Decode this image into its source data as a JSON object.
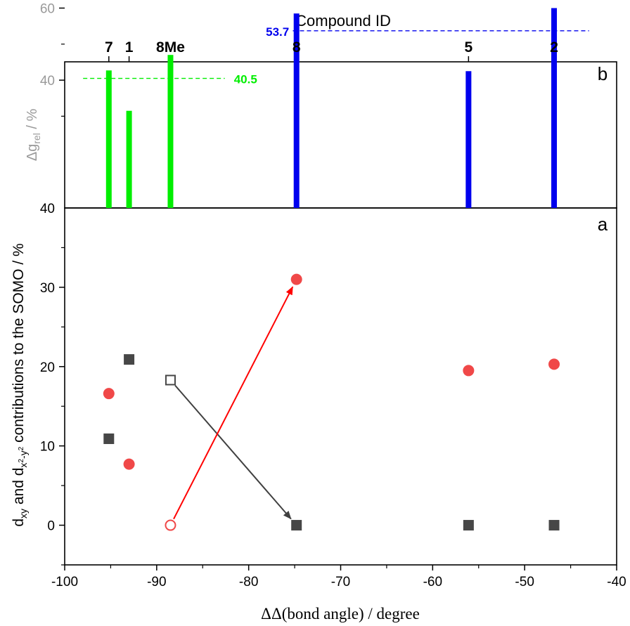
{
  "chart_data": [
    {
      "panel_label": "b",
      "type": "bar",
      "top_axis_title": "Compound ID",
      "ylabel": "Δg",
      "ylabel_subscript": "rel",
      "ylabel_unit": " / %",
      "y_ticks": [
        {
          "value": 60,
          "label": "60"
        },
        {
          "value": 40,
          "label": "40"
        }
      ],
      "bottom_tick_label": "40",
      "series": [
        {
          "name": "",
          "color": "#00ee00",
          "x": [
            -95.2,
            -93.0,
            -88.5
          ],
          "values": [
            42.7,
            31.5,
            47.0
          ],
          "average": 40.5,
          "average_label": "40.5"
        },
        {
          "name": "",
          "color": "#0000ee",
          "x": [
            -74.8,
            -56.1,
            -46.8
          ],
          "values": [
            58.5,
            42.5,
            60.0
          ],
          "average": 53.7,
          "average_label": "53.7"
        }
      ],
      "compound_ids": [
        {
          "x": -95.2,
          "label": "7"
        },
        {
          "x": -93.0,
          "label": "1"
        },
        {
          "x": -88.5,
          "label": "8Me"
        },
        {
          "x": -74.8,
          "label": "8"
        },
        {
          "x": -56.1,
          "label": "5"
        },
        {
          "x": -46.8,
          "label": "2"
        }
      ]
    },
    {
      "panel_label": "a",
      "type": "scatter",
      "xlabel": "ΔΔ(bond angle) / degree",
      "ylabel": "d_xy and d_x²-y² contributions to the SOMO / %",
      "xlim": [
        -100,
        -40
      ],
      "ylim": [
        -5,
        40
      ],
      "x_ticks": [
        -100,
        -90,
        -80,
        -70,
        -60,
        -50,
        -40
      ],
      "y_ticks": [
        0,
        10,
        20,
        30
      ],
      "series": [
        {
          "name": "",
          "marker": "square-filled",
          "color": "#474747",
          "points": [
            [
              -95.2,
              10.9
            ],
            [
              -93.0,
              20.9
            ],
            [
              -74.8,
              0.0
            ],
            [
              -56.1,
              0.0
            ],
            [
              -46.8,
              0.0
            ]
          ]
        },
        {
          "name": "",
          "marker": "circle-filled",
          "color": "#f04848",
          "points": [
            [
              -95.2,
              16.6
            ],
            [
              -93.0,
              7.7
            ],
            [
              -74.8,
              31.0
            ],
            [
              -56.1,
              19.5
            ],
            [
              -46.8,
              20.3
            ]
          ]
        },
        {
          "name": "",
          "marker": "square-open",
          "color": "#474747",
          "points": [
            [
              -88.5,
              18.3
            ]
          ]
        },
        {
          "name": "",
          "marker": "circle-open",
          "color": "#f04848",
          "points": [
            [
              -88.5,
              0.0
            ]
          ]
        }
      ],
      "arrows": [
        {
          "from": [
            -88.5,
            18.3
          ],
          "to": [
            -74.8,
            0.0
          ],
          "color": "#404040"
        },
        {
          "from": [
            -88.5,
            0.0
          ],
          "to": [
            -74.8,
            31.0
          ],
          "color": "#ff0000"
        }
      ]
    }
  ]
}
